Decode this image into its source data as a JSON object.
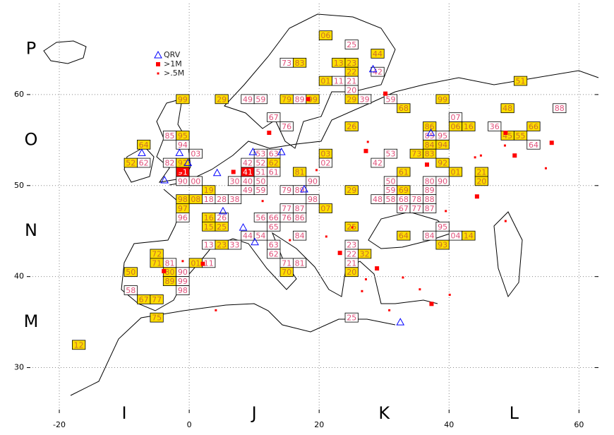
{
  "chart_data": {
    "type": "locator-map",
    "xlim": [
      -25,
      63
    ],
    "ylim": [
      25,
      70
    ],
    "xticks": [
      -20,
      0,
      20,
      40,
      60
    ],
    "yticks": [
      30,
      40,
      50,
      60
    ],
    "grid": true,
    "row_fields": [
      "P",
      "O",
      "N",
      "M"
    ],
    "col_fields": [
      "I",
      "J",
      "K",
      "L"
    ],
    "squares": {
      "I": {
        "O": [
          {
            "label": "64",
            "color": "#ffdd00"
          },
          {
            "label": "85",
            "color": "#ffffff"
          },
          {
            "label": "95",
            "color": "#ffdd00"
          },
          {
            "label": "94",
            "color": "#ffffff"
          },
          {
            "label": "52",
            "color": "#ffdd00"
          },
          {
            "label": "62",
            "color": "#ffffff"
          },
          {
            "label": "82",
            "color": "#ffffff"
          },
          {
            "label": "92",
            "color": "#ffdd00"
          },
          {
            "label": "91",
            "color": "#ff0000"
          },
          {
            "label": "90",
            "color": "#ffffff"
          },
          {
            "label": "99",
            "color": "#ffdd00"
          }
        ],
        "N": [
          {
            "label": "97",
            "color": "#ffdd00"
          },
          {
            "label": "96",
            "color": "#ffffff"
          },
          {
            "label": "72",
            "color": "#ffdd00"
          },
          {
            "label": "71",
            "color": "#ffdd00"
          },
          {
            "label": "81",
            "color": "#ffffff"
          },
          {
            "label": "50",
            "color": "#ffdd00"
          },
          {
            "label": "80",
            "color": "#ffdd00"
          },
          {
            "label": "90",
            "color": "#ffffff"
          },
          {
            "label": "98",
            "color": "#ffdd00"
          }
        ],
        "M": [
          {
            "label": "89",
            "color": "#ffdd00"
          },
          {
            "label": "99",
            "color": "#ffffff"
          },
          {
            "label": "58",
            "color": "#ffffff"
          },
          {
            "label": "98",
            "color": "#ffffff"
          },
          {
            "label": "67",
            "color": "#ffdd00"
          },
          {
            "label": "77",
            "color": "#ffdd00"
          },
          {
            "label": "75",
            "color": "#ffdd00"
          },
          {
            "label": "12",
            "color": "#ffdd00"
          }
        ]
      },
      "J": {
        "P": [
          {
            "label": "73",
            "color": "#ffffff"
          },
          {
            "label": "83",
            "color": "#ffdd00"
          }
        ],
        "O": [
          {
            "label": "29",
            "color": "#ffdd00"
          },
          {
            "label": "49",
            "color": "#ffffff"
          },
          {
            "label": "59",
            "color": "#ffffff"
          },
          {
            "label": "79",
            "color": "#ffdd00"
          },
          {
            "label": "89",
            "color": "#ffffff"
          },
          {
            "label": "99",
            "color": "#ffdd00"
          },
          {
            "label": "67",
            "color": "#ffffff"
          },
          {
            "label": "76",
            "color": "#ffffff"
          },
          {
            "label": "03",
            "color": "#ffffff"
          },
          {
            "label": "53",
            "color": "#ffffff"
          },
          {
            "label": "63",
            "color": "#ffffff"
          },
          {
            "label": "42",
            "color": "#ffffff"
          },
          {
            "label": "52",
            "color": "#ffffff"
          },
          {
            "label": "62",
            "color": "#ffdd00"
          },
          {
            "label": "41",
            "color": "#ff0000"
          },
          {
            "label": "51",
            "color": "#ffffff"
          },
          {
            "label": "61",
            "color": "#ffffff"
          },
          {
            "label": "81",
            "color": "#ffdd00"
          },
          {
            "label": "00",
            "color": "#ffffff"
          },
          {
            "label": "30",
            "color": "#ffffff"
          },
          {
            "label": "40",
            "color": "#ffffff"
          },
          {
            "label": "50",
            "color": "#ffffff"
          },
          {
            "label": "90",
            "color": "#ffffff"
          }
        ],
        "N": [
          {
            "label": "19",
            "color": "#ffdd00"
          },
          {
            "label": "49",
            "color": "#ffffff"
          },
          {
            "label": "59",
            "color": "#ffffff"
          },
          {
            "label": "79",
            "color": "#ffffff"
          },
          {
            "label": "89",
            "color": "#ffffff"
          },
          {
            "label": "08",
            "color": "#ffdd00"
          },
          {
            "label": "18",
            "color": "#ffffff"
          },
          {
            "label": "28",
            "color": "#ffffff"
          },
          {
            "label": "38",
            "color": "#ffffff"
          },
          {
            "label": "98",
            "color": "#ffffff"
          },
          {
            "label": "77",
            "color": "#ffffff"
          },
          {
            "label": "87",
            "color": "#ffffff"
          },
          {
            "label": "16",
            "color": "#ffdd00"
          },
          {
            "label": "26",
            "color": "#ffffff"
          },
          {
            "label": "56",
            "color": "#ffffff"
          },
          {
            "label": "66",
            "color": "#ffffff"
          },
          {
            "label": "76",
            "color": "#ffffff"
          },
          {
            "label": "86",
            "color": "#ffffff"
          },
          {
            "label": "15",
            "color": "#ffdd00"
          },
          {
            "label": "25",
            "color": "#ffdd00"
          },
          {
            "label": "65",
            "color": "#ffffff"
          },
          {
            "label": "44",
            "color": "#ffffff"
          },
          {
            "label": "54",
            "color": "#ffffff"
          },
          {
            "label": "84",
            "color": "#ffffff"
          },
          {
            "label": "13",
            "color": "#ffffff"
          },
          {
            "label": "23",
            "color": "#ffdd00"
          },
          {
            "label": "33",
            "color": "#ffffff"
          },
          {
            "label": "63",
            "color": "#ffffff"
          },
          {
            "label": "62",
            "color": "#ffffff"
          },
          {
            "label": "01",
            "color": "#ffdd00"
          },
          {
            "label": "11",
            "color": "#ffffff"
          },
          {
            "label": "71",
            "color": "#ffffff"
          },
          {
            "label": "81",
            "color": "#ffffff"
          },
          {
            "label": "70",
            "color": "#ffdd00"
          }
        ]
      },
      "K": {
        "P": [
          {
            "label": "06",
            "color": "#ffdd00"
          },
          {
            "label": "25",
            "color": "#ffffff"
          },
          {
            "label": "44",
            "color": "#ffdd00"
          },
          {
            "label": "42",
            "color": "#ffffff"
          },
          {
            "label": "13",
            "color": "#ffdd00"
          },
          {
            "label": "23",
            "color": "#ffdd00"
          },
          {
            "label": "22",
            "color": "#ffdd00"
          },
          {
            "label": "01",
            "color": "#ffdd00"
          },
          {
            "label": "11",
            "color": "#ffffff"
          },
          {
            "label": "21",
            "color": "#ffffff"
          },
          {
            "label": "20",
            "color": "#ffffff"
          }
        ],
        "O": [
          {
            "label": "29",
            "color": "#ffdd00"
          },
          {
            "label": "39",
            "color": "#ffffff"
          },
          {
            "label": "59",
            "color": "#ffffff"
          },
          {
            "label": "99",
            "color": "#ffdd00"
          },
          {
            "label": "68",
            "color": "#ffdd00"
          },
          {
            "label": "86",
            "color": "#ffdd00"
          },
          {
            "label": "26",
            "color": "#ffdd00"
          },
          {
            "label": "85",
            "color": "#ffffff"
          },
          {
            "label": "95",
            "color": "#ffffff"
          },
          {
            "label": "84",
            "color": "#ffdd00"
          },
          {
            "label": "94",
            "color": "#ffdd00"
          },
          {
            "label": "03",
            "color": "#ffdd00"
          },
          {
            "label": "53",
            "color": "#ffffff"
          },
          {
            "label": "73",
            "color": "#ffdd00"
          },
          {
            "label": "83",
            "color": "#ffdd00"
          },
          {
            "label": "02",
            "color": "#ffffff"
          },
          {
            "label": "42",
            "color": "#ffffff"
          },
          {
            "label": "92",
            "color": "#ffdd00"
          },
          {
            "label": "61",
            "color": "#ffdd00"
          },
          {
            "label": "50",
            "color": "#ffffff"
          },
          {
            "label": "80",
            "color": "#ffffff"
          },
          {
            "label": "90",
            "color": "#ffffff"
          }
        ],
        "N": [
          {
            "label": "29",
            "color": "#ffdd00"
          },
          {
            "label": "59",
            "color": "#ffffff"
          },
          {
            "label": "69",
            "color": "#ffdd00"
          },
          {
            "label": "89",
            "color": "#ffffff"
          },
          {
            "label": "48",
            "color": "#ffffff"
          },
          {
            "label": "58",
            "color": "#ffffff"
          },
          {
            "label": "68",
            "color": "#ffffff"
          },
          {
            "label": "78",
            "color": "#ffffff"
          },
          {
            "label": "88",
            "color": "#ffffff"
          },
          {
            "label": "07",
            "color": "#ffdd00"
          },
          {
            "label": "67",
            "color": "#ffffff"
          },
          {
            "label": "77",
            "color": "#ffffff"
          },
          {
            "label": "87",
            "color": "#ffffff"
          },
          {
            "label": "25",
            "color": "#ffdd00"
          },
          {
            "label": "95",
            "color": "#ffffff"
          },
          {
            "label": "64",
            "color": "#ffdd00"
          },
          {
            "label": "84",
            "color": "#ffffff"
          },
          {
            "label": "93",
            "color": "#ffdd00"
          },
          {
            "label": "23",
            "color": "#ffffff"
          },
          {
            "label": "22",
            "color": "#ffffff"
          },
          {
            "label": "32",
            "color": "#ffdd00"
          },
          {
            "label": "21",
            "color": "#ffffff"
          },
          {
            "label": "20",
            "color": "#ffdd00"
          }
        ],
        "M": [
          {
            "label": "25",
            "color": "#ffffff"
          }
        ]
      },
      "L": {
        "P": [
          {
            "label": "51",
            "color": "#ffdd00"
          }
        ],
        "O": [
          {
            "label": "48",
            "color": "#ffdd00"
          },
          {
            "label": "88",
            "color": "#ffffff"
          },
          {
            "label": "07",
            "color": "#ffffff"
          },
          {
            "label": "36",
            "color": "#ffffff"
          },
          {
            "label": "06",
            "color": "#ffdd00"
          },
          {
            "label": "16",
            "color": "#ffdd00"
          },
          {
            "label": "66",
            "color": "#ffdd00"
          },
          {
            "label": "45",
            "color": "#ffdd00"
          },
          {
            "label": "55",
            "color": "#ffdd00"
          },
          {
            "label": "64",
            "color": "#ffffff"
          },
          {
            "label": "01",
            "color": "#ffdd00"
          },
          {
            "label": "21",
            "color": "#ffdd00"
          },
          {
            "label": "20",
            "color": "#ffdd00"
          }
        ],
        "N": [
          {
            "label": "04",
            "color": "#ffffff"
          },
          {
            "label": "14",
            "color": "#ffdd00"
          }
        ]
      }
    },
    "series": [
      {
        "name": "QRV",
        "color": "#0000ff",
        "marker": "triangle",
        "x": [
          -7.3,
          -1.5,
          -0.2,
          -3.8,
          4.3,
          9.8,
          14.2,
          5.2,
          8.3,
          10.1,
          17.7,
          28.3,
          37.2,
          32.5
        ],
        "y": [
          53.6,
          53.6,
          52.5,
          50.6,
          51.4,
          53.7,
          53.7,
          47.2,
          45.4,
          43.8,
          49.6,
          62.8,
          55.8,
          35.0
        ]
      },
      {
        "name": ">1M",
        "color": "#ff0000",
        "marker": "square",
        "x": [
          -1.4,
          6.8,
          30.2,
          27.2,
          36.6,
          55.8,
          44.3,
          48.7,
          50.1,
          37.3,
          28.9,
          -3.9,
          2.1,
          23.2,
          12.3,
          18.3
        ],
        "y": [
          51.7,
          51.5,
          60.1,
          53.8,
          52.3,
          54.7,
          48.8,
          55.8,
          53.3,
          37.0,
          40.9,
          40.6,
          41.4,
          42.6,
          55.8,
          59.5
        ]
      },
      {
        "name": ">.5M",
        "color": "#ff0000",
        "marker": "dot",
        "x": [
          44.0,
          44.9,
          48.6,
          54.9,
          39.5,
          48.7,
          32.9,
          35.5,
          40.1,
          25.1,
          21.1,
          27.2,
          26.6,
          30.8,
          19.6,
          27.5,
          15.5,
          11.3,
          -1.0,
          4.1
        ],
        "y": [
          53.1,
          53.3,
          54.4,
          51.9,
          47.2,
          46.1,
          39.9,
          38.6,
          38.0,
          45.4,
          44.4,
          39.7,
          38.4,
          36.3,
          51.7,
          54.8,
          44.0,
          48.3,
          41.7,
          36.3
        ]
      }
    ]
  }
}
